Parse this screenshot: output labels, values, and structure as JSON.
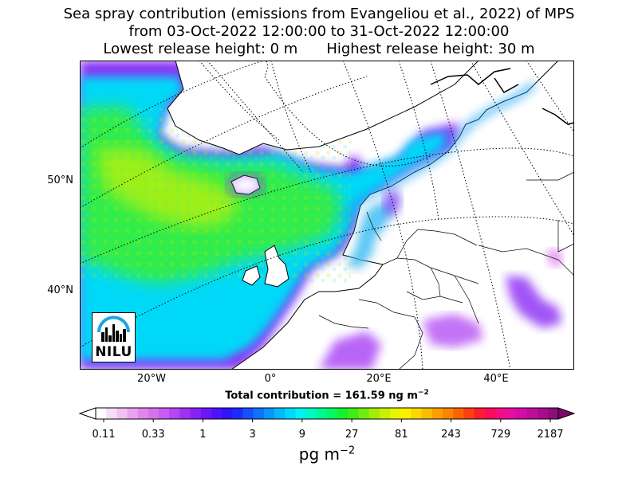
{
  "title": {
    "line1": "Sea spray contribution (emissions from Evangeliou et al., 2022) of MPS",
    "line2": "from 03-Oct-2022 12:00:00 to 31-Oct-2022 12:00:00",
    "lowest": "Lowest release height: 0 m",
    "highest": "Highest release height: 30 m"
  },
  "map": {
    "lat_labels": [
      "50°N",
      "40°N"
    ],
    "lon_labels": [
      "20°W",
      "0°",
      "20°E",
      "40°E"
    ]
  },
  "total": "Total contribution = 161.59 ng m",
  "total_exp": "−2",
  "colorbar": {
    "ticks": [
      "0.11",
      "0.33",
      "1",
      "3",
      "9",
      "27",
      "81",
      "243",
      "729",
      "2187"
    ],
    "colors": [
      "#ffffff",
      "#f8dcf8",
      "#f2c0f4",
      "#eaa2f0",
      "#e286ee",
      "#d870ee",
      "#c95cf0",
      "#b844f2",
      "#a030f4",
      "#8a20f6",
      "#6c16f6",
      "#5012f8",
      "#3014fa",
      "#1c2cfc",
      "#1450fc",
      "#0c74fc",
      "#0896fc",
      "#04b8fc",
      "#00d8fc",
      "#00f2f0",
      "#00f8c4",
      "#00f890",
      "#04f860",
      "#14f030",
      "#40ec18",
      "#70ec10",
      "#a0ee08",
      "#c8f004",
      "#e8f400",
      "#fcf000",
      "#fcd800",
      "#fcbc00",
      "#fca000",
      "#fc8400",
      "#fc6400",
      "#fc4010",
      "#fc1c30",
      "#fc0c5c",
      "#f40c84",
      "#e80ca0",
      "#d40ca8",
      "#c00c9c",
      "#a80c8c",
      "#900c7c"
    ],
    "over_color": "#7c0868",
    "unit": "pg m",
    "unit_exp": "−2"
  },
  "logo": {
    "text": "NILU",
    "color": "#1fa6e0"
  }
}
